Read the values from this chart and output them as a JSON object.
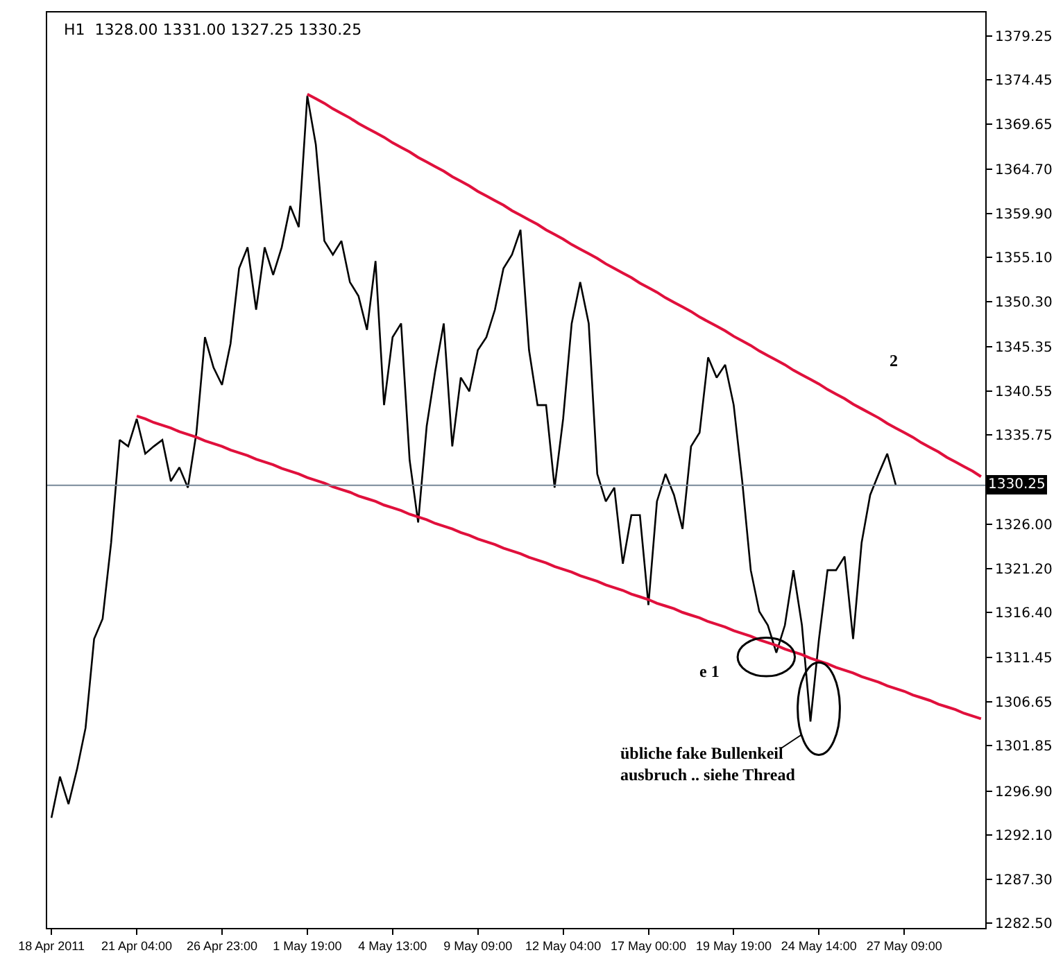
{
  "chart_data": {
    "type": "line",
    "title": "H1  1328.00 1331.00 1327.25 1330.25",
    "annotations": [
      "2",
      "e 1",
      "übliche fake Bullenkeil\nausbruch .. siehe Thread"
    ],
    "categories": [
      "18 Apr 2011",
      null,
      null,
      null,
      null,
      null,
      null,
      null,
      null,
      null,
      "21 Apr 04:00",
      null,
      null,
      null,
      null,
      null,
      null,
      null,
      null,
      null,
      "26 Apr 23:00",
      null,
      null,
      null,
      null,
      null,
      null,
      null,
      null,
      null,
      "1 May 19:00",
      null,
      null,
      null,
      null,
      null,
      null,
      null,
      null,
      null,
      "4 May 13:00",
      null,
      null,
      null,
      null,
      null,
      null,
      null,
      null,
      null,
      "9 May 09:00",
      null,
      null,
      null,
      null,
      null,
      null,
      null,
      null,
      null,
      "12 May 04:00",
      null,
      null,
      null,
      null,
      null,
      null,
      null,
      null,
      null,
      "17 May 00:00",
      null,
      null,
      null,
      null,
      null,
      null,
      null,
      null,
      null,
      "19 May 19:00",
      null,
      null,
      null,
      null,
      null,
      null,
      null,
      null,
      null,
      "24 May 14:00",
      null,
      null,
      null,
      null,
      null,
      null,
      null,
      null,
      null,
      "27 May 09:00",
      null,
      null,
      null,
      null,
      null,
      null,
      null,
      null,
      null
    ],
    "ylim": [
      1282.0,
      1381.8
    ],
    "yticks": [
      {
        "value": 1282.5,
        "label": "1282.50"
      },
      {
        "value": 1287.3,
        "label": "1287.30"
      },
      {
        "value": 1292.1,
        "label": "1292.10"
      },
      {
        "value": 1296.9,
        "label": "1296.90"
      },
      {
        "value": 1301.85,
        "label": "1301.85"
      },
      {
        "value": 1306.65,
        "label": "1306.65"
      },
      {
        "value": 1311.45,
        "label": "1311.45"
      },
      {
        "value": 1316.4,
        "label": "1316.40"
      },
      {
        "value": 1321.2,
        "label": "1321.20"
      },
      {
        "value": 1326.0,
        "label": "1326.00"
      },
      {
        "value": 1335.75,
        "label": "1335.75"
      },
      {
        "value": 1340.55,
        "label": "1340.55"
      },
      {
        "value": 1345.35,
        "label": "1345.35"
      },
      {
        "value": 1350.3,
        "label": "1350.30"
      },
      {
        "value": 1355.1,
        "label": "1355.10"
      },
      {
        "value": 1359.9,
        "label": "1359.90"
      },
      {
        "value": 1364.7,
        "label": "1364.70"
      },
      {
        "value": 1369.65,
        "label": "1369.65"
      },
      {
        "value": 1374.45,
        "label": "1374.45"
      },
      {
        "value": 1379.25,
        "label": "1379.25"
      }
    ],
    "ref_lines": [
      {
        "axis": "y",
        "value": 1330.25,
        "label": "1330.25",
        "color": "#778899"
      }
    ],
    "marker": "none",
    "line_style": "solid",
    "series": [
      {
        "color": "#000000",
        "values": [
          1294.0,
          1298.5,
          1295.5,
          1299.3,
          1303.8,
          1313.5,
          1315.7,
          1324.0,
          1335.2,
          1334.5,
          1337.5,
          1333.7,
          1334.5,
          1335.2,
          1330.7,
          1332.2,
          1330.0,
          1336.0,
          1346.4,
          1343.1,
          1341.2,
          1345.7,
          1353.9,
          1356.2,
          1349.4,
          1356.2,
          1353.2,
          1356.2,
          1360.7,
          1358.4,
          1372.7,
          1367.4,
          1356.9,
          1355.4,
          1356.9,
          1352.4,
          1350.9,
          1347.2,
          1354.7,
          1339.0,
          1346.4,
          1347.9,
          1333.0,
          1326.2,
          1336.7,
          1342.7,
          1347.9,
          1334.5,
          1342.0,
          1340.5,
          1345.0,
          1346.4,
          1349.4,
          1353.9,
          1355.4,
          1358.1,
          1345.0,
          1339.0,
          1339.0,
          1330.0,
          1337.5,
          1347.9,
          1352.4,
          1347.9,
          1331.5,
          1328.5,
          1330.0,
          1321.7,
          1327.0,
          1327.0,
          1317.2,
          1328.5,
          1331.5,
          1329.2,
          1325.5,
          1334.5,
          1336.0,
          1344.2,
          1342.0,
          1343.4,
          1339.0,
          1330.7,
          1321.0,
          1316.5,
          1315.0,
          1312.0,
          1315.0,
          1321.0,
          1315.0,
          1304.5,
          1313.5,
          1321.0,
          1321.0,
          1322.5,
          1313.5,
          1324.0,
          1329.2,
          1331.5,
          1333.7,
          1330.3,
          null,
          null,
          null,
          null,
          null,
          null,
          null,
          null,
          null,
          null
        ]
      },
      {
        "color": "#e0103c",
        "values": [
          null,
          null,
          null,
          null,
          null,
          null,
          null,
          null,
          null,
          null,
          null,
          null,
          null,
          null,
          null,
          null,
          null,
          null,
          null,
          null,
          null,
          null,
          null,
          null,
          null,
          null,
          null,
          null,
          null,
          null,
          1372.9,
          1372.4,
          1371.9,
          1371.3,
          1370.8,
          1370.3,
          1369.7,
          1369.2,
          1368.7,
          1368.2,
          1367.6,
          1367.1,
          1366.6,
          1366.0,
          1365.5,
          1365.0,
          1364.5,
          1363.9,
          1363.4,
          1362.9,
          1362.3,
          1361.8,
          1361.3,
          1360.8,
          1360.2,
          1359.7,
          1359.2,
          1358.7,
          1358.1,
          1357.6,
          1357.1,
          1356.5,
          1356.0,
          1355.5,
          1355.0,
          1354.4,
          1353.9,
          1353.4,
          1352.9,
          1352.3,
          1351.8,
          1351.3,
          1350.7,
          1350.2,
          1349.7,
          1349.2,
          1348.6,
          1348.1,
          1347.6,
          1347.1,
          1346.5,
          1346.0,
          1345.5,
          1344.9,
          1344.4,
          1343.9,
          1343.4,
          1342.8,
          1342.3,
          1341.8,
          1341.3,
          1340.7,
          1340.2,
          1339.7,
          1339.1,
          1338.6,
          1338.1,
          1337.6,
          1337.0,
          1336.5,
          1336.0,
          1335.5,
          1334.9,
          1334.4,
          1333.9,
          1333.3,
          1332.8,
          1332.3,
          1331.8,
          1331.2
        ]
      },
      {
        "color": "#e0103c",
        "values": [
          null,
          null,
          null,
          null,
          null,
          null,
          null,
          null,
          null,
          null,
          1337.8,
          1337.5,
          1337.1,
          1336.8,
          1336.5,
          1336.1,
          1335.8,
          1335.5,
          1335.1,
          1334.8,
          1334.5,
          1334.1,
          1333.8,
          1333.5,
          1333.1,
          1332.8,
          1332.5,
          1332.1,
          1331.8,
          1331.5,
          1331.1,
          1330.8,
          1330.5,
          1330.1,
          1329.8,
          1329.5,
          1329.1,
          1328.8,
          1328.5,
          1328.1,
          1327.8,
          1327.5,
          1327.1,
          1326.8,
          1326.5,
          1326.1,
          1325.8,
          1325.5,
          1325.1,
          1324.8,
          1324.4,
          1324.1,
          1323.8,
          1323.4,
          1323.1,
          1322.8,
          1322.4,
          1322.1,
          1321.8,
          1321.4,
          1321.1,
          1320.8,
          1320.4,
          1320.1,
          1319.8,
          1319.4,
          1319.1,
          1318.8,
          1318.4,
          1318.1,
          1317.8,
          1317.4,
          1317.1,
          1316.8,
          1316.4,
          1316.1,
          1315.8,
          1315.4,
          1315.1,
          1314.8,
          1314.4,
          1314.1,
          1313.8,
          1313.4,
          1313.1,
          1312.8,
          1312.4,
          1312.1,
          1311.8,
          1311.4,
          1311.1,
          1310.8,
          1310.4,
          1310.1,
          1309.8,
          1309.4,
          1309.1,
          1308.8,
          1308.4,
          1308.1,
          1307.8,
          1307.4,
          1307.1,
          1306.8,
          1306.4,
          1306.1,
          1305.8,
          1305.4,
          1305.1,
          1304.8
        ]
      }
    ]
  }
}
